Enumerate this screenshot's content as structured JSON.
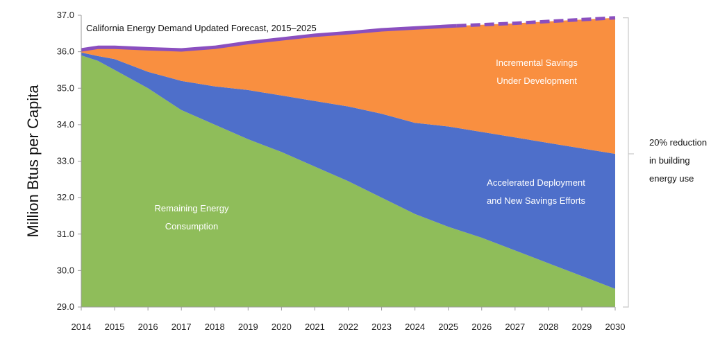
{
  "chart_data": {
    "type": "area",
    "title": "California Energy Demand Updated Forecast, 2015–2025",
    "ylabel": "Million Btus per Capita",
    "xlabel": "",
    "ylim": [
      29.0,
      37.0
    ],
    "y_ticks": [
      "29.0",
      "30.0",
      "31.0",
      "32.0",
      "33.0",
      "34.0",
      "35.0",
      "36.0",
      "37.0"
    ],
    "x": [
      2014,
      2014.5,
      2015,
      2016,
      2017,
      2018,
      2019,
      2020,
      2021,
      2022,
      2023,
      2024,
      2025,
      2026,
      2027,
      2028,
      2029,
      2030
    ],
    "x_ticks": [
      "2014",
      "2015",
      "2016",
      "2017",
      "2018",
      "2019",
      "2020",
      "2021",
      "2022",
      "2023",
      "2024",
      "2025",
      "2026",
      "2027",
      "2028",
      "2029",
      "2030"
    ],
    "series": [
      {
        "name": "Remaining Energy Consumption",
        "label_lines": [
          "Remaining Energy",
          "Consumption"
        ],
        "color": "#8fbd5a",
        "top_values": [
          35.9,
          35.75,
          35.5,
          35.0,
          34.4,
          34.0,
          33.6,
          33.25,
          32.85,
          32.45,
          32.0,
          31.55,
          31.2,
          30.9,
          30.55,
          30.2,
          29.85,
          29.5
        ]
      },
      {
        "name": "Accelerated Deployment and New Savings Efforts",
        "label_lines": [
          "Accelerated Deployment",
          "and New Savings Efforts"
        ],
        "color": "#4e6fca",
        "top_values": [
          35.98,
          35.88,
          35.8,
          35.45,
          35.2,
          35.05,
          34.95,
          34.8,
          34.65,
          34.5,
          34.3,
          34.05,
          33.95,
          33.8,
          33.65,
          33.5,
          33.35,
          33.2
        ]
      },
      {
        "name": "Incremental Savings Under Development",
        "label_lines": [
          "Incremental Savings",
          "Under Development"
        ],
        "color": "#f98f40",
        "top_values": [
          36.05,
          36.12,
          36.12,
          36.08,
          36.05,
          36.12,
          36.25,
          36.35,
          36.45,
          36.52,
          36.6,
          36.65,
          36.7,
          36.74,
          36.78,
          36.83,
          36.88,
          36.93
        ]
      }
    ],
    "forecast_line": {
      "color": "#8a4fbf",
      "values": [
        36.05,
        36.12,
        36.12,
        36.08,
        36.05,
        36.12,
        36.25,
        36.35,
        36.45,
        36.52,
        36.6,
        36.65,
        36.7,
        36.74,
        36.78,
        36.83,
        36.88,
        36.93
      ],
      "dashed_from_x": 2025.25
    },
    "annotation_lines": [
      "20% reduction",
      "in building",
      "energy use"
    ],
    "grid": false
  }
}
